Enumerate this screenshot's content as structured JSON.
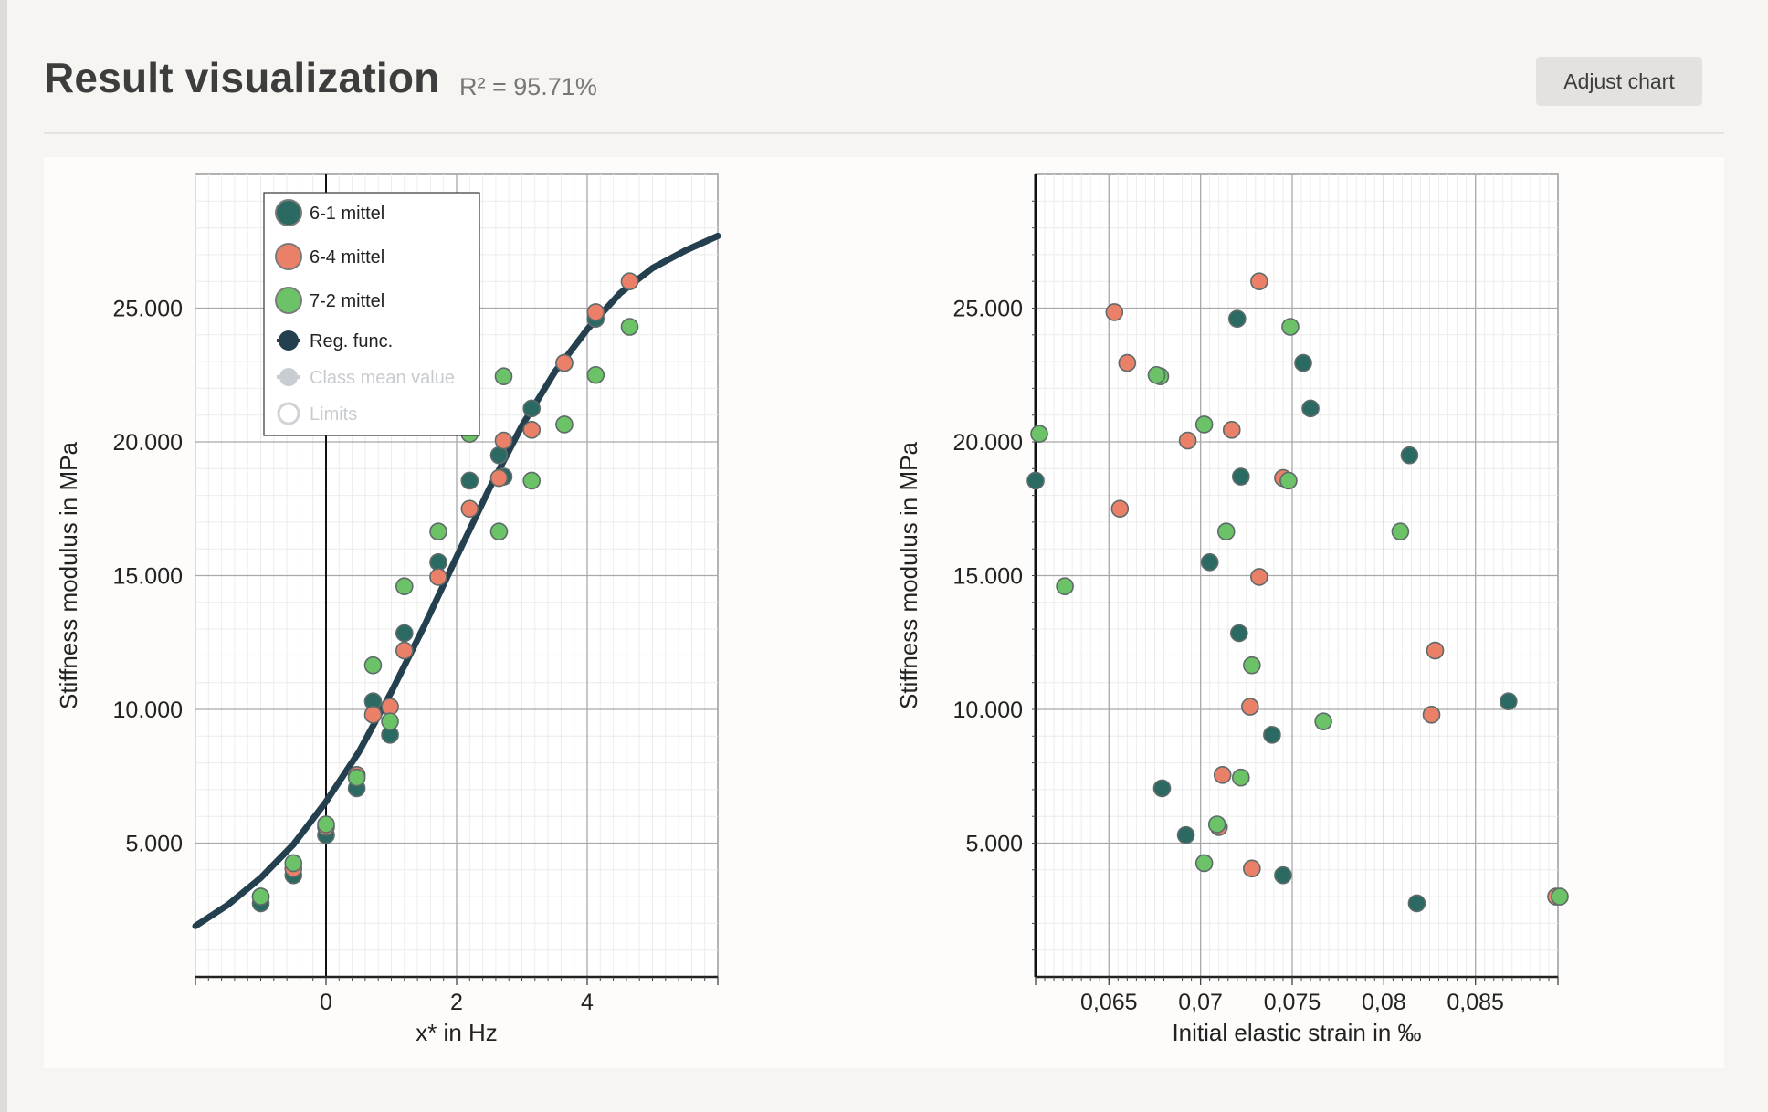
{
  "header": {
    "title": "Result visualization",
    "r_squared": "R² = 95.71%",
    "adjust_button": "Adjust chart"
  },
  "colors": {
    "series_6_1": "#2a6a62",
    "series_6_4": "#ea8068",
    "series_7_2": "#6cc266",
    "regression": "#24404f",
    "class_mean": "#c9cdd3",
    "limits": "#cfd2d6"
  },
  "legend": {
    "items": [
      {
        "label": "6-1 mittel",
        "marker": "circle",
        "color": "#2a6a62",
        "enabled": true
      },
      {
        "label": "6-4 mittel",
        "marker": "circle",
        "color": "#ea8068",
        "enabled": true
      },
      {
        "label": "7-2 mittel",
        "marker": "circle",
        "color": "#6cc266",
        "enabled": true
      },
      {
        "label": "Reg. func.",
        "marker": "line-dot",
        "color": "#24404f",
        "enabled": true
      },
      {
        "label": "Class mean value",
        "marker": "diamond",
        "color": "#c9cdd3",
        "enabled": false
      },
      {
        "label": "Limits",
        "marker": "ring",
        "color": "#cfd2d6",
        "enabled": false
      }
    ]
  },
  "chart_data": [
    {
      "type": "scatter",
      "xlabel": "x* in Hz",
      "ylabel": "Stiffness modulus in MPa",
      "xlim": [
        -2,
        6
      ],
      "ylim": [
        0,
        30000
      ],
      "xticks": [
        {
          "v": 0,
          "label": "0"
        },
        {
          "v": 2,
          "label": "2"
        },
        {
          "v": 4,
          "label": "4"
        }
      ],
      "yticks": [
        {
          "v": 5000,
          "label": "5.000"
        },
        {
          "v": 10000,
          "label": "10.000"
        },
        {
          "v": 15000,
          "label": "15.000"
        },
        {
          "v": 20000,
          "label": "20.000"
        },
        {
          "v": 25000,
          "label": "25.000"
        }
      ],
      "grid": true,
      "legend_position": "top-left",
      "series": [
        {
          "name": "6-1 mittel",
          "color_key": "series_6_1",
          "points": [
            [
              -1.0,
              2750
            ],
            [
              -0.5,
              3800
            ],
            [
              0.0,
              5300
            ],
            [
              0.47,
              7050
            ],
            [
              0.72,
              10300
            ],
            [
              0.98,
              9050
            ],
            [
              1.2,
              12850
            ],
            [
              1.72,
              15500
            ],
            [
              2.2,
              18550
            ],
            [
              2.65,
              19500
            ],
            [
              2.72,
              18700
            ],
            [
              3.15,
              21250
            ],
            [
              3.65,
              22950
            ],
            [
              4.13,
              24600
            ]
          ]
        },
        {
          "name": "6-4 mittel",
          "color_key": "series_6_4",
          "points": [
            [
              -1.0,
              3000
            ],
            [
              -0.5,
              4050
            ],
            [
              0.0,
              5600
            ],
            [
              0.47,
              7550
            ],
            [
              0.72,
              9800
            ],
            [
              0.98,
              10100
            ],
            [
              1.2,
              12200
            ],
            [
              1.72,
              14950
            ],
            [
              2.2,
              17500
            ],
            [
              2.65,
              18650
            ],
            [
              2.72,
              20050
            ],
            [
              3.15,
              20450
            ],
            [
              3.65,
              22950
            ],
            [
              4.13,
              24850
            ],
            [
              4.65,
              26000
            ]
          ]
        },
        {
          "name": "7-2 mittel",
          "color_key": "series_7_2",
          "points": [
            [
              -1.0,
              3000
            ],
            [
              -0.5,
              4250
            ],
            [
              0.0,
              5700
            ],
            [
              0.47,
              7450
            ],
            [
              0.72,
              11650
            ],
            [
              0.98,
              9550
            ],
            [
              1.2,
              14600
            ],
            [
              1.72,
              16650
            ],
            [
              2.2,
              20300
            ],
            [
              2.65,
              16650
            ],
            [
              2.72,
              22450
            ],
            [
              3.15,
              18550
            ],
            [
              3.65,
              20650
            ],
            [
              4.13,
              22500
            ],
            [
              4.65,
              24300
            ]
          ]
        },
        {
          "name": "Reg. func.",
          "color_key": "regression",
          "kind": "line",
          "points": [
            [
              -2.0,
              1900
            ],
            [
              -1.5,
              2700
            ],
            [
              -1.0,
              3700
            ],
            [
              -0.5,
              4950
            ],
            [
              0.0,
              6550
            ],
            [
              0.5,
              8400
            ],
            [
              1.0,
              10650
            ],
            [
              1.5,
              13100
            ],
            [
              2.0,
              15700
            ],
            [
              2.5,
              18250
            ],
            [
              3.0,
              20600
            ],
            [
              3.5,
              22600
            ],
            [
              4.0,
              24200
            ],
            [
              4.5,
              25550
            ],
            [
              5.0,
              26500
            ],
            [
              5.5,
              27150
            ],
            [
              6.0,
              27700
            ]
          ]
        }
      ]
    },
    {
      "type": "scatter",
      "xlabel": "Initial elastic strain in ‰",
      "ylabel": "Stiffness modulus in MPa",
      "xlim": [
        0.061,
        0.0895
      ],
      "ylim": [
        0,
        30000
      ],
      "xticks": [
        {
          "v": 0.065,
          "label": "0,065"
        },
        {
          "v": 0.07,
          "label": "0,07"
        },
        {
          "v": 0.075,
          "label": "0,075"
        },
        {
          "v": 0.08,
          "label": "0,08"
        },
        {
          "v": 0.085,
          "label": "0,085"
        }
      ],
      "yticks": [
        {
          "v": 5000,
          "label": "5.000"
        },
        {
          "v": 10000,
          "label": "10.000"
        },
        {
          "v": 15000,
          "label": "15.000"
        },
        {
          "v": 20000,
          "label": "20.000"
        },
        {
          "v": 25000,
          "label": "25.000"
        }
      ],
      "grid": true,
      "series": [
        {
          "name": "6-1 mittel",
          "color_key": "series_6_1",
          "points": [
            [
              0.072,
              24600
            ],
            [
              0.0756,
              22950
            ],
            [
              0.076,
              21250
            ],
            [
              0.0814,
              19500
            ],
            [
              0.061,
              18550
            ],
            [
              0.0722,
              18700
            ],
            [
              0.0705,
              15500
            ],
            [
              0.0721,
              12850
            ],
            [
              0.0868,
              10300
            ],
            [
              0.0739,
              9050
            ],
            [
              0.0679,
              7050
            ],
            [
              0.0692,
              5300
            ],
            [
              0.0745,
              3800
            ],
            [
              0.0818,
              2750
            ]
          ]
        },
        {
          "name": "6-4 mittel",
          "color_key": "series_6_4",
          "points": [
            [
              0.0732,
              26000
            ],
            [
              0.0653,
              24850
            ],
            [
              0.066,
              22950
            ],
            [
              0.0717,
              20450
            ],
            [
              0.0693,
              20050
            ],
            [
              0.0745,
              18650
            ],
            [
              0.0656,
              17500
            ],
            [
              0.0732,
              14950
            ],
            [
              0.0828,
              12200
            ],
            [
              0.0727,
              10100
            ],
            [
              0.0826,
              9800
            ],
            [
              0.0712,
              7550
            ],
            [
              0.071,
              5600
            ],
            [
              0.0728,
              4050
            ],
            [
              0.0894,
              3000
            ]
          ]
        },
        {
          "name": "7-2 mittel",
          "color_key": "series_7_2",
          "points": [
            [
              0.0749,
              24300
            ],
            [
              0.0678,
              22450
            ],
            [
              0.0676,
              22500
            ],
            [
              0.0702,
              20650
            ],
            [
              0.0612,
              20300
            ],
            [
              0.0748,
              18550
            ],
            [
              0.0714,
              16650
            ],
            [
              0.0809,
              16650
            ],
            [
              0.0626,
              14600
            ],
            [
              0.0728,
              11650
            ],
            [
              0.0767,
              9550
            ],
            [
              0.0722,
              7450
            ],
            [
              0.0709,
              5700
            ],
            [
              0.0702,
              4250
            ],
            [
              0.0896,
              3000
            ]
          ]
        }
      ]
    }
  ]
}
